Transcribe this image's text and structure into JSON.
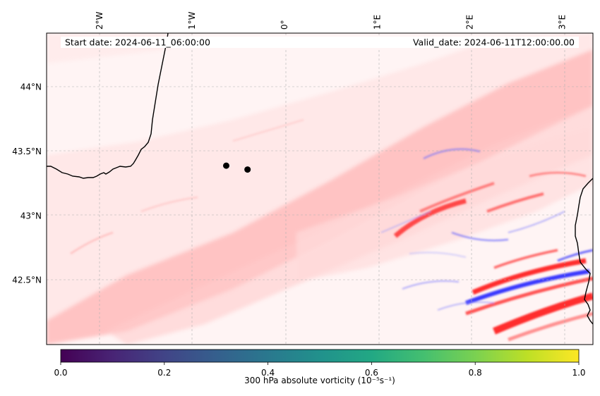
{
  "map": {
    "start_label": "Start date: 2024-06-11_06:00:00",
    "valid_label": "Valid_date: 2024-06-11T12:00:00.00",
    "lon_ticks": [
      {
        "lon": -2,
        "label": "2°W"
      },
      {
        "lon": -1,
        "label": "1°W"
      },
      {
        "lon": 0,
        "label": "0°"
      },
      {
        "lon": 1,
        "label": "1°E"
      },
      {
        "lon": 2,
        "label": "2°E"
      },
      {
        "lon": 3,
        "label": "3°E"
      }
    ],
    "lat_ticks": [
      {
        "lat": 44.0,
        "label": "44°N"
      },
      {
        "lat": 43.5,
        "label": "43.5°N"
      },
      {
        "lat": 43.0,
        "label": "43°N"
      },
      {
        "lat": 42.5,
        "label": "42.5°N"
      }
    ],
    "extent": {
      "lon_min": -2.57,
      "lon_max": 3.33,
      "lat_min": 42.0,
      "lat_max": 44.42
    },
    "markers": [
      {
        "lon": -0.63,
        "lat": 43.39
      },
      {
        "lon": -0.4,
        "lat": 43.36
      }
    ],
    "colors": {
      "positive": "#ff0000",
      "negative": "#0000ff",
      "background": "#fff5f5",
      "marker": "#000000"
    }
  },
  "colorbar": {
    "label": "300 hPa absolute vorticity (10⁻⁵s⁻¹)",
    "colormap": "viridis",
    "min": 0.0,
    "max": 1.0,
    "ticks": [
      {
        "value": 0.0,
        "label": "0.0"
      },
      {
        "value": 0.2,
        "label": "0.2"
      },
      {
        "value": 0.4,
        "label": "0.4"
      },
      {
        "value": 0.6,
        "label": "0.6"
      },
      {
        "value": 0.8,
        "label": "0.8"
      },
      {
        "value": 1.0,
        "label": "1.0"
      }
    ]
  }
}
